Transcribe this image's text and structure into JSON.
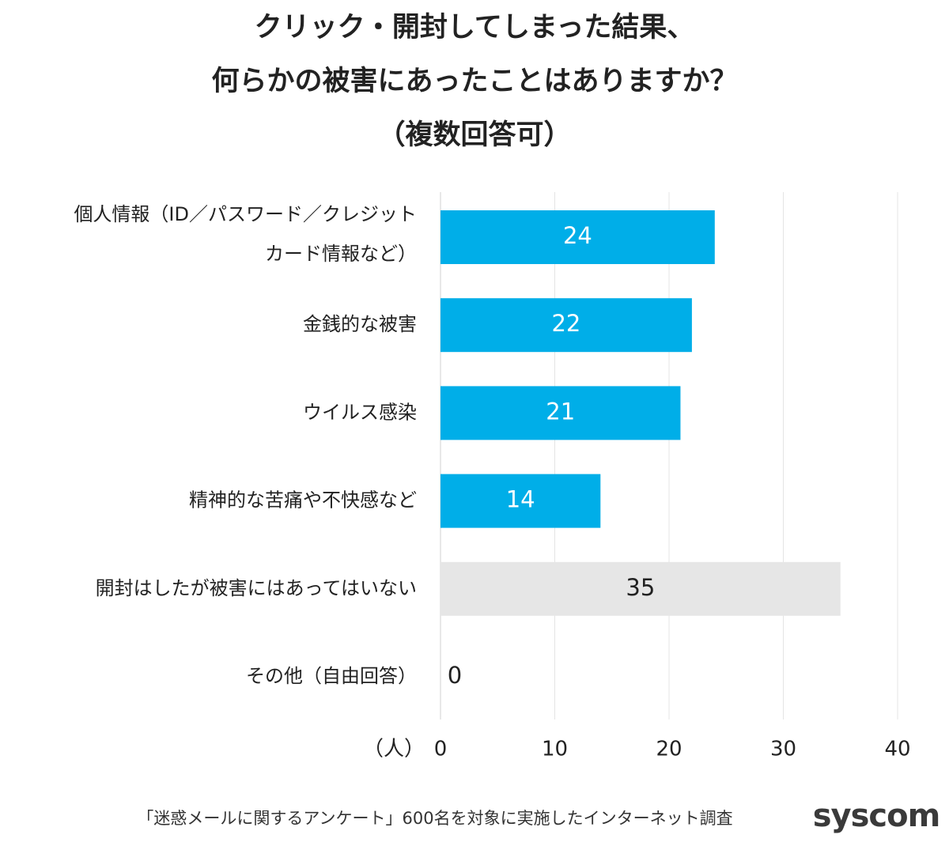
{
  "chart_data": {
    "type": "barh",
    "title": [
      "クリック・開封してしまった結果、",
      "何らかの被害にあったことはありますか？",
      "（複数回答可）"
    ],
    "categories": [
      [
        "個人情報（ID／パスワード／クレジット",
        "カード情報など）"
      ],
      "金銭的な被害",
      "ウイルス感染",
      "精神的な苦痛や不快感など",
      "開封はしたが被害にはあってはいない",
      "その他（自由回答）"
    ],
    "values": [
      24,
      22,
      21,
      14,
      35,
      0
    ],
    "colors": [
      "#00aee8",
      "#00aee8",
      "#00aee8",
      "#00aee8",
      "#e6e6e6",
      "#e6e6e6"
    ],
    "value_label_colors": [
      "#ffffff",
      "#ffffff",
      "#ffffff",
      "#ffffff",
      "#222222",
      "#222222"
    ],
    "x_label": "（人）",
    "xlim": [
      0,
      40
    ],
    "xticks": [
      0,
      10,
      20,
      30,
      40
    ],
    "grid": true,
    "source": "「迷惑メールに関するアンケート」600名を対象に実施したインターネット調査",
    "logo": "syscom"
  }
}
